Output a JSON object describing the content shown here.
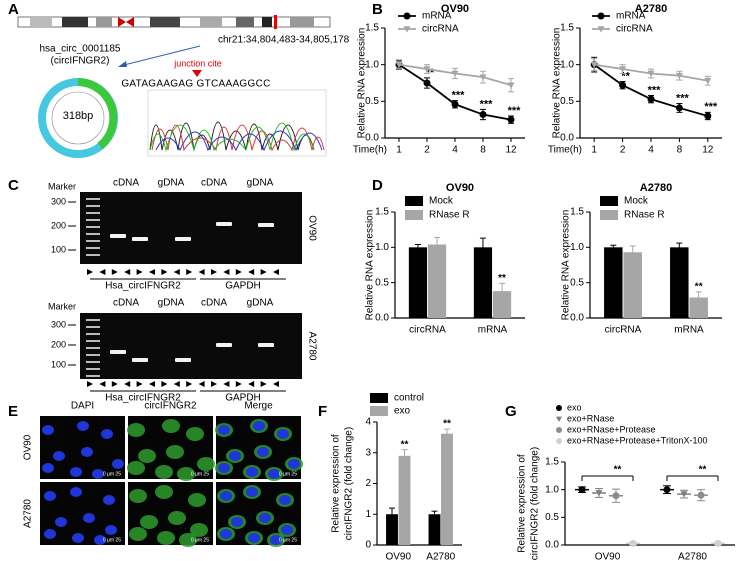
{
  "panel_labels": [
    "A",
    "B",
    "C",
    "D",
    "E",
    "F",
    "G"
  ],
  "panel_a": {
    "circ_name": "hsa_circ_0001185",
    "circ_alias": "(circIFNGR2)",
    "locus": "chr21:34,804,483-34,805,178",
    "size": "318bp",
    "junction_note": "junction cite",
    "sequence": "GATAGAAGAG GTCAAAGGCC"
  },
  "panel_c": {
    "gels": [
      {
        "marker": "Marker",
        "lanes": [
          "cDNA",
          "gDNA",
          "cDNA",
          "gDNA"
        ],
        "ladder": [
          "300",
          "200",
          "100"
        ],
        "genes": [
          "Hsa_circIFNGR2",
          "GAPDH"
        ],
        "cell_line": "OV90"
      },
      {
        "marker": "Marker",
        "lanes": [
          "cDNA",
          "gDNA",
          "cDNA",
          "gDNA"
        ],
        "ladder": [
          "300",
          "200",
          "100"
        ],
        "genes": [
          "Hsa_circIFNGR2",
          "GAPDH"
        ],
        "cell_line": "A2780"
      }
    ]
  },
  "panel_e": {
    "columns": [
      "DAPI",
      "circIFNGR2",
      "Merge"
    ],
    "rows": [
      "OV90",
      "A2780"
    ],
    "scale_label": "0 μm 25"
  },
  "chart_data": [
    {
      "type": "line",
      "title": "OV90",
      "ylabel": "Relative RNA expression",
      "xlabel": "Time(h)",
      "categories": [
        "1",
        "2",
        "4",
        "8",
        "12"
      ],
      "ylim": [
        0,
        1.5
      ],
      "yticks": [
        {
          "value": 0,
          "label": "0.0"
        },
        {
          "value": 0.5,
          "label": "0.5"
        },
        {
          "value": 1,
          "label": "1.0"
        },
        {
          "value": 1.5,
          "label": "1.5"
        }
      ],
      "series": [
        {
          "name": "mRNA",
          "color": "#000000",
          "marker": "circle",
          "values": [
            1.0,
            0.75,
            0.46,
            0.32,
            0.25
          ],
          "errors": [
            0.06,
            0.07,
            0.05,
            0.07,
            0.05
          ],
          "significance": [
            null,
            "**",
            "***",
            "***",
            "***"
          ]
        },
        {
          "name": "circRNA",
          "color": "#a6a6a6",
          "marker": "triangle-down",
          "values": [
            1.0,
            0.94,
            0.88,
            0.83,
            0.72
          ],
          "errors": [
            0.05,
            0.06,
            0.07,
            0.08,
            0.09
          ]
        }
      ]
    },
    {
      "type": "line",
      "title": "A2780",
      "ylabel": "Relative RNA expression",
      "xlabel": "Time(h)",
      "categories": [
        "1",
        "2",
        "4",
        "8",
        "12"
      ],
      "ylim": [
        0,
        1.5
      ],
      "yticks": [
        {
          "value": 0,
          "label": "0.0"
        },
        {
          "value": 0.5,
          "label": "0.5"
        },
        {
          "value": 1,
          "label": "1.0"
        },
        {
          "value": 1.5,
          "label": "1.5"
        }
      ],
      "series": [
        {
          "name": "mRNA",
          "color": "#000000",
          "marker": "circle",
          "values": [
            1.0,
            0.72,
            0.53,
            0.41,
            0.3
          ],
          "errors": [
            0.1,
            0.05,
            0.05,
            0.06,
            0.05
          ],
          "significance": [
            null,
            "**",
            "***",
            "***",
            "***"
          ]
        },
        {
          "name": "circRNA",
          "color": "#a6a6a6",
          "marker": "triangle-down",
          "values": [
            1.0,
            0.94,
            0.88,
            0.85,
            0.78
          ],
          "errors": [
            0.08,
            0.06,
            0.06,
            0.06,
            0.06
          ]
        }
      ]
    },
    {
      "type": "bar",
      "title": "OV90",
      "ylabel": "Relative RNA expression",
      "categories": [
        "circRNA",
        "mRNA"
      ],
      "ylim": [
        0,
        1.5
      ],
      "yticks": [
        {
          "value": 0,
          "label": "0.0"
        },
        {
          "value": 0.5,
          "label": "0.5"
        },
        {
          "value": 1,
          "label": "1.0"
        },
        {
          "value": 1.5,
          "label": "1.5"
        }
      ],
      "series": [
        {
          "name": "Mock",
          "color": "#000000",
          "values": [
            1.0,
            1.0
          ],
          "errors": [
            0.04,
            0.13
          ]
        },
        {
          "name": "RNase R",
          "color": "#a6a6a6",
          "values": [
            1.04,
            0.38
          ],
          "errors": [
            0.1,
            0.11
          ],
          "significance": [
            null,
            "**"
          ]
        }
      ]
    },
    {
      "type": "bar",
      "title": "A2780",
      "ylabel": "Relative RNA expression",
      "categories": [
        "circRNA",
        "mRNA"
      ],
      "ylim": [
        0,
        1.5
      ],
      "yticks": [
        {
          "value": 0,
          "label": "0.0"
        },
        {
          "value": 0.5,
          "label": "0.5"
        },
        {
          "value": 1,
          "label": "1.0"
        },
        {
          "value": 1.5,
          "label": "1.5"
        }
      ],
      "series": [
        {
          "name": "Mock",
          "color": "#000000",
          "values": [
            1.0,
            1.0
          ],
          "errors": [
            0.03,
            0.06
          ]
        },
        {
          "name": "RNase R",
          "color": "#a6a6a6",
          "values": [
            0.93,
            0.29
          ],
          "errors": [
            0.09,
            0.08
          ],
          "significance": [
            null,
            "**"
          ]
        }
      ]
    },
    {
      "type": "bar",
      "ylabel": [
        "Relative expression of",
        "circIFNGR2 (fold change)"
      ],
      "categories": [
        "OV90",
        "A2780"
      ],
      "ylim": [
        0,
        4
      ],
      "yticks": [
        0,
        1,
        2,
        3,
        4
      ],
      "series": [
        {
          "name": "control",
          "color": "#000000",
          "values": [
            1.0,
            1.0
          ],
          "errors": [
            0.2,
            0.1
          ]
        },
        {
          "name": "exo",
          "color": "#a6a6a6",
          "values": [
            2.9,
            3.62
          ],
          "errors": [
            0.2,
            0.15
          ],
          "significance": [
            "**",
            "**"
          ]
        }
      ]
    },
    {
      "type": "dot",
      "ylabel": [
        "Relative expression of",
        "circIFNGR2 (fold change)"
      ],
      "categories": [
        "OV90",
        "A2780"
      ],
      "ylim": [
        0,
        1.5
      ],
      "yticks": [
        {
          "value": 0,
          "label": "0.0"
        },
        {
          "value": 0.5,
          "label": "0.5"
        },
        {
          "value": 1,
          "label": "1.0"
        },
        {
          "value": 1.5,
          "label": "1.5"
        }
      ],
      "significance": [
        "**",
        "**"
      ],
      "series": [
        {
          "name": "exo",
          "color": "#000000",
          "marker": "circle",
          "values": [
            1.0,
            1.0
          ],
          "errors": [
            0.05,
            0.07
          ]
        },
        {
          "name": "exo+RNase",
          "color": "#7f7f7f",
          "marker": "triangle-down",
          "values": [
            0.94,
            0.92
          ],
          "errors": [
            0.08,
            0.07
          ]
        },
        {
          "name": "exo+RNase+Protease",
          "color": "#8c8c8c",
          "marker": "circle",
          "values": [
            0.89,
            0.9
          ],
          "errors": [
            0.12,
            0.1
          ]
        },
        {
          "name": "exo+RNase+Protease+TritonX-100",
          "color": "#d0d0d0",
          "marker": "circle",
          "values": [
            0.03,
            0.03
          ],
          "errors": [
            0.02,
            0.02
          ]
        }
      ]
    }
  ]
}
